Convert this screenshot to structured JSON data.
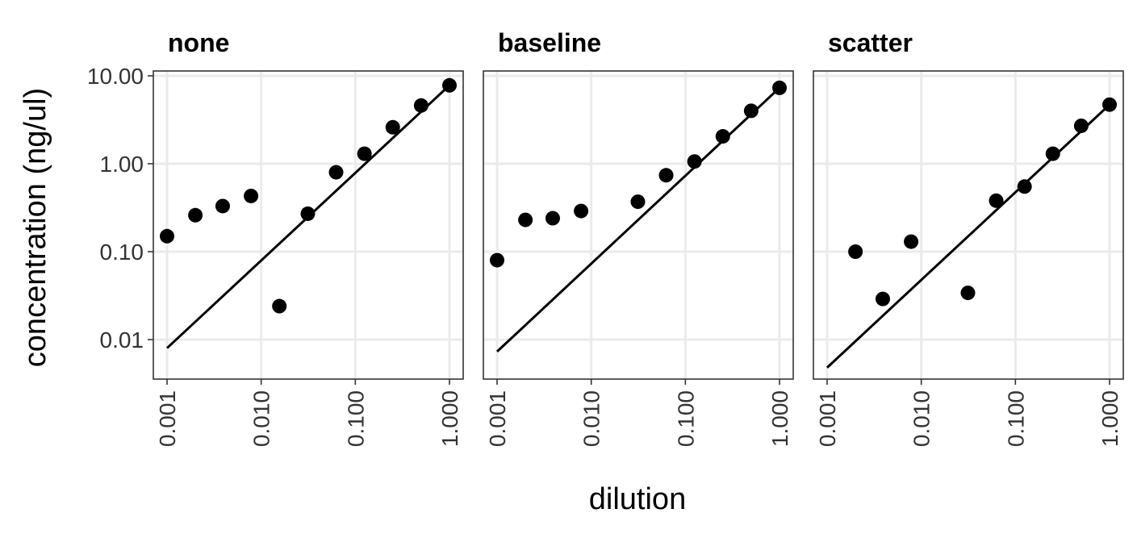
{
  "chart_data": {
    "type": "scatter",
    "xlabel": "dilution",
    "ylabel": "concentration (ng/ul)",
    "x_scale": "log10",
    "y_scale": "log10",
    "xlim": [
      0.001,
      1.0
    ],
    "ylim": [
      0.003,
      13
    ],
    "x_ticks": [
      "0.001",
      "0.010",
      "0.100",
      "1.000"
    ],
    "x_tick_values": [
      0.001,
      0.01,
      0.1,
      1.0
    ],
    "y_ticks": [
      "0.01",
      "0.10",
      "1.00",
      "10.00"
    ],
    "y_tick_values": [
      0.01,
      0.1,
      1.0,
      10.0
    ],
    "grid": true,
    "point_color": "#000000",
    "line_color": "#000000",
    "panels": [
      {
        "title": "none",
        "points": [
          {
            "x": 0.001,
            "y": 0.15
          },
          {
            "x": 0.002,
            "y": 0.26
          },
          {
            "x": 0.0039,
            "y": 0.33
          },
          {
            "x": 0.0078,
            "y": 0.43
          },
          {
            "x": 0.0156,
            "y": 0.024
          },
          {
            "x": 0.0313,
            "y": 0.27
          },
          {
            "x": 0.0625,
            "y": 0.8
          },
          {
            "x": 0.125,
            "y": 1.3
          },
          {
            "x": 0.25,
            "y": 2.6
          },
          {
            "x": 0.5,
            "y": 4.6
          },
          {
            "x": 1.0,
            "y": 7.8
          }
        ],
        "fit": [
          {
            "x": 0.001,
            "y": 0.008
          },
          {
            "x": 1.0,
            "y": 7.8
          }
        ]
      },
      {
        "title": "baseline",
        "points": [
          {
            "x": 0.001,
            "y": 0.08
          },
          {
            "x": 0.002,
            "y": 0.23
          },
          {
            "x": 0.0039,
            "y": 0.24
          },
          {
            "x": 0.0078,
            "y": 0.29
          },
          {
            "x": 0.0313,
            "y": 0.37
          },
          {
            "x": 0.0625,
            "y": 0.74
          },
          {
            "x": 0.125,
            "y": 1.06
          },
          {
            "x": 0.25,
            "y": 2.05
          },
          {
            "x": 0.5,
            "y": 4.0
          },
          {
            "x": 1.0,
            "y": 7.3
          }
        ],
        "fit": [
          {
            "x": 0.001,
            "y": 0.0073
          },
          {
            "x": 1.0,
            "y": 7.3
          }
        ]
      },
      {
        "title": "scatter",
        "points": [
          {
            "x": 0.002,
            "y": 0.1
          },
          {
            "x": 0.0039,
            "y": 0.029
          },
          {
            "x": 0.0078,
            "y": 0.13
          },
          {
            "x": 0.0313,
            "y": 0.034
          },
          {
            "x": 0.0625,
            "y": 0.38
          },
          {
            "x": 0.125,
            "y": 0.55
          },
          {
            "x": 0.25,
            "y": 1.3
          },
          {
            "x": 0.5,
            "y": 2.7
          },
          {
            "x": 1.0,
            "y": 4.7
          }
        ],
        "fit": [
          {
            "x": 0.001,
            "y": 0.0048
          },
          {
            "x": 1.0,
            "y": 4.7
          }
        ]
      }
    ]
  }
}
